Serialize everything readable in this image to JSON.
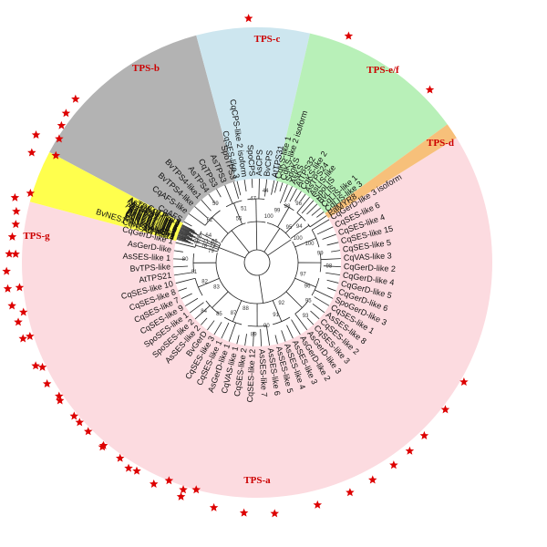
{
  "colors": {
    "tps_a": "#fcdbe0",
    "tps_b": "#b3b3b3",
    "tps_c": "#cde6ef",
    "tps_e_f": "#b8f0b8",
    "tps_d": "#f7c07a",
    "tps_g": "#ffff4d",
    "star": "#dd0000",
    "label": "#cc0000"
  },
  "clades": [
    {
      "id": "tps_a",
      "label": "TPS-a",
      "label_angle": 180,
      "a0": 58,
      "a1": 285
    },
    {
      "id": "tps_b",
      "label": "TPS-b",
      "label_angle": 323,
      "a0": 298,
      "a1": 345
    },
    {
      "id": "tps_c",
      "label": "TPS-c",
      "label_angle": 358,
      "a0": 345,
      "a1": 13
    },
    {
      "id": "tps_e_f",
      "label": "TPS-e/f",
      "label_angle": 33,
      "a0": 13,
      "a1": 54
    },
    {
      "id": "tps_d",
      "label": "TPS-d",
      "label_angle": 56,
      "a0": 54,
      "a1": 58
    },
    {
      "id": "tps_g",
      "label": "TPS-g",
      "label_angle": 270,
      "a0": 285,
      "a1": 298
    }
  ],
  "leaves": [
    {
      "name": "CqGerD-like 3 isoform",
      "clade": "tps_a"
    },
    {
      "name": "CqSES-like 6",
      "clade": "tps_a"
    },
    {
      "name": "CqSES-like 4",
      "clade": "tps_a"
    },
    {
      "name": "CqSES-like 15",
      "clade": "tps_a"
    },
    {
      "name": "CqSES-like 5",
      "clade": "tps_a"
    },
    {
      "name": "CqVAS-like 3",
      "clade": "tps_a"
    },
    {
      "name": "CqGerD-like 2",
      "clade": "tps_a"
    },
    {
      "name": "CqGerD-like 4",
      "clade": "tps_a"
    },
    {
      "name": "CqGerD-like 5",
      "clade": "tps_a"
    },
    {
      "name": "CqGerD-like 6",
      "clade": "tps_a"
    },
    {
      "name": "SpoGerD-like 3",
      "clade": "tps_a"
    },
    {
      "name": "CqSES-like 1",
      "clade": "tps_a"
    },
    {
      "name": "AsSES-like 8",
      "clade": "tps_a"
    },
    {
      "name": "CqSES-like 2",
      "clade": "tps_a"
    },
    {
      "name": "CqSES-like 3",
      "clade": "tps_a"
    },
    {
      "name": "AsGerD-like 3",
      "clade": "tps_a"
    },
    {
      "name": "AsGerD-like 2",
      "clade": "tps_a"
    },
    {
      "name": "AsSES-like 3",
      "clade": "tps_a"
    },
    {
      "name": "AsSES-like 4",
      "clade": "tps_a"
    },
    {
      "name": "AsSES-like 5",
      "clade": "tps_a"
    },
    {
      "name": "AsSES-like 6",
      "clade": "tps_a"
    },
    {
      "name": "AsSES-like 7",
      "clade": "tps_a"
    },
    {
      "name": "CqSES-like 12",
      "clade": "tps_a"
    },
    {
      "name": "CqSES-like 2",
      "clade": "tps_a"
    },
    {
      "name": "CqVAS-like 1",
      "clade": "tps_a"
    },
    {
      "name": "AsGerD-like 1",
      "clade": "tps_a"
    },
    {
      "name": "CqSES-like 1",
      "clade": "tps_a"
    },
    {
      "name": "CqSES-like 3",
      "clade": "tps_a"
    },
    {
      "name": "BvGerD",
      "clade": "tps_a"
    },
    {
      "name": "AsSES-like 2",
      "clade": "tps_a"
    },
    {
      "name": "SpoSES-like 2",
      "clade": "tps_a"
    },
    {
      "name": "SpoSES-like 1",
      "clade": "tps_a"
    },
    {
      "name": "CqSES-like 9",
      "clade": "tps_a"
    },
    {
      "name": "CqSES-like 7",
      "clade": "tps_a"
    },
    {
      "name": "CqSES-like 8",
      "clade": "tps_a"
    },
    {
      "name": "CqSES-like 10",
      "clade": "tps_a"
    },
    {
      "name": "AtTPS21",
      "clade": "tps_a"
    },
    {
      "name": "BvTPS-like",
      "clade": "tps_a"
    },
    {
      "name": "AsSES-like 1",
      "clade": "tps_a"
    },
    {
      "name": "AsGerD-like",
      "clade": "tps_a"
    },
    {
      "name": "CqGerD-like 1",
      "clade": "tps_a"
    },
    {
      "name": "AtTPS14",
      "clade": "tps_g"
    },
    {
      "name": "CqNES1-like 1",
      "clade": "tps_g"
    },
    {
      "name": "BvNES1-like 3 isoform",
      "clade": "tps_g"
    },
    {
      "name": "SpoNES1",
      "clade": "tps_g"
    },
    {
      "name": "CqNES1-like 3",
      "clade": "tps_g"
    },
    {
      "name": "BvNES1-like 2",
      "clade": "tps_g"
    },
    {
      "name": "CqNES1-like 1",
      "clade": "tps_g"
    },
    {
      "name": "CqNES1-like 2",
      "clade": "tps_g"
    },
    {
      "name": "AsNES1-like 5",
      "clade": "tps_g"
    },
    {
      "name": "AsNES1-like 4",
      "clade": "tps_g"
    },
    {
      "name": "AsNES1-like 6",
      "clade": "tps_g"
    },
    {
      "name": "AsNES1-like 1",
      "clade": "tps_g"
    },
    {
      "name": "AsTPS13-like 1",
      "clade": "tps_g"
    },
    {
      "name": "AsNES1-like 2",
      "clade": "tps_g"
    },
    {
      "name": "AsNES1-like 3",
      "clade": "tps_g"
    },
    {
      "name": "AsTPS13-like 2",
      "clade": "tps_g"
    },
    {
      "name": "AsTPS13-like 3",
      "clade": "tps_g"
    },
    {
      "name": "CqTPS13",
      "clade": "tps_g"
    },
    {
      "name": "CqAFS",
      "clade": "tps_b"
    },
    {
      "name": "CqAFS-like",
      "clade": "tps_b"
    },
    {
      "name": "BvTPS4-like",
      "clade": "tps_b"
    },
    {
      "name": "BvTPS4-like1",
      "clade": "tps_b"
    },
    {
      "name": "AsTPS4",
      "clade": "tps_b"
    },
    {
      "name": "CqTPS3",
      "clade": "tps_b"
    },
    {
      "name": "AsTPS3",
      "clade": "tps_b"
    },
    {
      "name": "SpoTPS3",
      "clade": "tps_b"
    },
    {
      "name": "CqSES-like 3",
      "clade": "tps_c"
    },
    {
      "name": "CqCPS-like 2 isoform",
      "clade": "tps_c"
    },
    {
      "name": "SpoCPS",
      "clade": "tps_c"
    },
    {
      "name": "AsCPS",
      "clade": "tps_c"
    },
    {
      "name": "BvCPS",
      "clade": "tps_c"
    },
    {
      "name": "AtTPS31",
      "clade": "tps_c"
    },
    {
      "name": "CqKS-like 1",
      "clade": "tps_e_f"
    },
    {
      "name": "CqKS-like 2 isoform",
      "clade": "tps_e_f"
    },
    {
      "name": "SpoKS",
      "clade": "tps_e_f"
    },
    {
      "name": "AsKS",
      "clade": "tps_e_f"
    },
    {
      "name": "AtTPS32",
      "clade": "tps_e_f"
    },
    {
      "name": "CqKS-like 2",
      "clade": "tps_e_f"
    },
    {
      "name": "AsTPS24",
      "clade": "tps_e_f"
    },
    {
      "name": "AsLIS-like",
      "clade": "tps_e_f"
    },
    {
      "name": "SpoLIS",
      "clade": "tps_e_f"
    },
    {
      "name": "BvLIS",
      "clade": "tps_e_f"
    },
    {
      "name": "CqLIS-like 1",
      "clade": "tps_e_f"
    },
    {
      "name": "CqLIS-like 3",
      "clade": "tps_e_f"
    },
    {
      "name": "PaMYR8",
      "clade": "tps_d"
    }
  ],
  "bootstrap": [
    "100",
    "100",
    "99",
    "98",
    "97",
    "96",
    "95",
    "93",
    "92",
    "91",
    "90",
    "89",
    "88",
    "87",
    "85",
    "84",
    "83",
    "82",
    "81",
    "80",
    "79",
    "78",
    "76",
    "75",
    "73",
    "71",
    "70",
    "68",
    "66",
    "64",
    "62",
    "59",
    "55",
    "51",
    "47",
    "44",
    "100",
    "99",
    "98",
    "96",
    "95",
    "94"
  ],
  "stars": [
    {
      "angle": -62,
      "r": 250
    },
    {
      "angle": -58,
      "r": 256
    },
    {
      "angle": -55,
      "r": 262
    },
    {
      "angle": -52,
      "r": 266
    },
    {
      "angle": -48,
      "r": 268
    },
    {
      "angle": -60,
      "r": 280
    },
    {
      "angle": -64,
      "r": 275
    },
    {
      "angle": -73,
      "r": 260
    },
    {
      "angle": -75,
      "r": 275
    },
    {
      "angle": -78,
      "r": 270
    },
    {
      "angle": -81,
      "r": 268
    },
    {
      "angle": -84,
      "r": 270
    },
    {
      "angle": -88,
      "r": 272
    },
    {
      "angle": -92,
      "r": 275
    },
    {
      "angle": -96,
      "r": 275
    },
    {
      "angle": -100,
      "r": 273
    },
    {
      "angle": -104,
      "r": 270
    },
    {
      "angle": -108,
      "r": 270
    },
    {
      "angle": -115,
      "r": 268
    },
    {
      "angle": -120,
      "r": 266
    },
    {
      "angle": -125,
      "r": 264
    },
    {
      "angle": -130,
      "r": 262
    },
    {
      "angle": -135,
      "r": 262
    },
    {
      "angle": -140,
      "r": 262
    },
    {
      "angle": -145,
      "r": 262
    },
    {
      "angle": -150,
      "r": 264
    },
    {
      "angle": -158,
      "r": 258
    },
    {
      "angle": -162,
      "r": 262
    },
    {
      "angle": -165,
      "r": 258
    },
    {
      "angle": -2,
      "r": 268
    },
    {
      "angle": 22,
      "r": 268
    },
    {
      "angle": 45,
      "r": 268
    },
    {
      "angle": 120,
      "r": 262
    },
    {
      "angle": 128,
      "r": 262
    },
    {
      "angle": 136,
      "r": 264
    },
    {
      "angle": 141,
      "r": 266
    },
    {
      "angle": 146,
      "r": 268
    },
    {
      "angle": 152,
      "r": 270
    },
    {
      "angle": 158,
      "r": 272
    },
    {
      "angle": 166,
      "r": 274
    },
    {
      "angle": 176,
      "r": 276
    },
    {
      "angle": 183,
      "r": 275
    },
    {
      "angle": 190,
      "r": 273
    },
    {
      "angle": 198,
      "r": 270
    },
    {
      "angle": 205,
      "r": 268
    },
    {
      "angle": 212,
      "r": 266
    },
    {
      "angle": 220,
      "r": 264
    },
    {
      "angle": 228,
      "r": 262
    },
    {
      "angle": 236,
      "r": 262
    },
    {
      "angle": 244,
      "r": 262
    },
    {
      "angle": 252,
      "r": 262
    },
    {
      "angle": 258,
      "r": 262
    },
    {
      "angle": 264,
      "r": 262
    },
    {
      "angle": 272,
      "r": 265
    }
  ]
}
